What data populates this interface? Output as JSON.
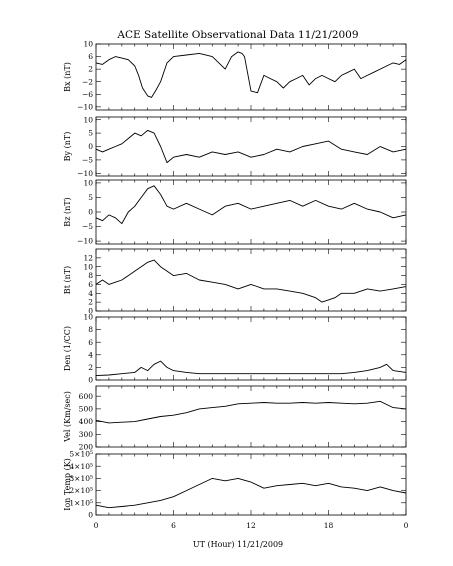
{
  "chart_data": {
    "type": "line",
    "title": "ACE Satellite Observational Data   11/21/2009",
    "xlabel": "UT (Hour)   11/21/2009",
    "x_ticks": [
      "0",
      "6",
      "12",
      "18",
      "0"
    ],
    "xlim": [
      0,
      24
    ],
    "panels": [
      {
        "ylabel": "Bx (nT)",
        "ylim": [
          -11,
          10
        ],
        "ytick_values": [
          10,
          6,
          2,
          -2,
          -6,
          -10
        ],
        "ytick_labels": [
          "10",
          "6",
          "2",
          "−2",
          "−6",
          "−10"
        ],
        "series": [
          {
            "x": [
              0,
              0.5,
              1,
              1.5,
              2,
              2.5,
              3,
              3.3,
              3.6,
              4,
              4.3,
              4.6,
              5,
              5.5,
              6,
              7,
              8,
              9,
              10,
              10.5,
              11,
              11.3,
              11.5,
              12,
              12.5,
              13,
              13.5,
              14,
              14.5,
              15,
              15.5,
              16,
              16.5,
              17,
              17.5,
              18,
              18.5,
              19,
              19.5,
              20,
              20.5,
              21,
              21.5,
              22,
              22.5,
              23,
              23.5,
              24
            ],
            "y": [
              4,
              3.5,
              5,
              6,
              5.5,
              5,
              3,
              0,
              -4,
              -6.5,
              -7,
              -5,
              -2,
              4,
              6,
              6.5,
              7,
              6,
              2,
              6,
              7.5,
              7,
              6,
              -5,
              -5.5,
              0,
              -1,
              -2,
              -4,
              -2,
              -1,
              0,
              -3,
              -1,
              0,
              -1,
              -2,
              0,
              1,
              2,
              -1,
              0,
              1,
              2,
              3,
              4,
              3.5,
              5
            ]
          }
        ]
      },
      {
        "ylabel": "By (nT)",
        "ylim": [
          -11,
          11
        ],
        "ytick_values": [
          10,
          5,
          0,
          -5,
          -10
        ],
        "ytick_labels": [
          "10",
          "5",
          "0",
          "−5",
          "−10"
        ],
        "series": [
          {
            "x": [
              0,
              0.5,
              1,
              1.5,
              2,
              2.5,
              3,
              3.5,
              4,
              4.5,
              5,
              5.5,
              6,
              7,
              8,
              9,
              10,
              11,
              12,
              13,
              14,
              15,
              16,
              17,
              18,
              19,
              20,
              21,
              22,
              23,
              24
            ],
            "y": [
              -1,
              -2,
              -1,
              0,
              1,
              3,
              5,
              4,
              6,
              5,
              0,
              -6,
              -4,
              -3,
              -4,
              -2,
              -3,
              -2,
              -4,
              -3,
              -1,
              -2,
              0,
              1,
              2,
              -1,
              -2,
              -3,
              0,
              -2,
              -1
            ]
          }
        ]
      },
      {
        "ylabel": "Bz (nT)",
        "ylim": [
          -11,
          11
        ],
        "ytick_values": [
          10,
          5,
          0,
          -5,
          -10
        ],
        "ytick_labels": [
          "10",
          "5",
          "0",
          "−5",
          "−10"
        ],
        "series": [
          {
            "x": [
              0,
              0.5,
              1,
              1.5,
              2,
              2.5,
              3,
              3.5,
              4,
              4.5,
              5,
              5.5,
              6,
              7,
              8,
              9,
              10,
              11,
              12,
              13,
              14,
              15,
              16,
              17,
              18,
              19,
              20,
              21,
              22,
              23,
              24
            ],
            "y": [
              -2,
              -3,
              -1,
              -2,
              -4,
              0,
              2,
              5,
              8,
              9,
              6,
              2,
              1,
              3,
              1,
              -1,
              2,
              3,
              1,
              2,
              3,
              4,
              2,
              4,
              2,
              1,
              3,
              1,
              0,
              -2,
              -1
            ]
          }
        ]
      },
      {
        "ylabel": "Bt (nT)",
        "ylim": [
          0,
          14
        ],
        "ytick_values": [
          12,
          10,
          8,
          6,
          4,
          2,
          0
        ],
        "ytick_labels": [
          "12",
          "10",
          "8",
          "6",
          "4",
          "2",
          "0"
        ],
        "series": [
          {
            "x": [
              0,
              0.5,
              1,
              1.5,
              2,
              2.5,
              3,
              3.5,
              4,
              4.5,
              5,
              5.5,
              6,
              7,
              8,
              9,
              10,
              11,
              12,
              13,
              14,
              15,
              16,
              17,
              17.5,
              18,
              18.5,
              19,
              20,
              21,
              22,
              23,
              24
            ],
            "y": [
              6,
              7,
              6,
              6.5,
              7,
              8,
              9,
              10,
              11,
              11.5,
              10,
              9,
              8,
              8.5,
              7,
              6.5,
              6,
              5,
              6,
              5,
              5,
              4.5,
              4,
              3,
              2,
              2.5,
              3,
              4,
              4,
              5,
              4.5,
              5,
              5.5
            ]
          }
        ]
      },
      {
        "ylabel": "Den (1/CC)",
        "ylim": [
          0,
          10
        ],
        "ytick_values": [
          10,
          8,
          6,
          4,
          2,
          0
        ],
        "ytick_labels": [
          "10",
          "8",
          "6",
          "4",
          "2",
          "0"
        ],
        "series": [
          {
            "x": [
              0,
              1,
              2,
              3,
              3.5,
              4,
              4.5,
              5,
              5.5,
              6,
              7,
              8,
              9,
              10,
              11,
              12,
              13,
              14,
              15,
              16,
              17,
              18,
              19,
              20,
              21,
              22,
              22.5,
              23,
              24
            ],
            "y": [
              0.7,
              0.8,
              1,
              1.2,
              2,
              1.5,
              2.5,
              3,
              2,
              1.5,
              1.2,
              1,
              1,
              1,
              1,
              1,
              1,
              1,
              1,
              1,
              1,
              1,
              1,
              1.2,
              1.5,
              2,
              2.5,
              1.5,
              1.2
            ]
          }
        ]
      },
      {
        "ylabel": "Vel (Km/sec)",
        "ylim": [
          200,
          680
        ],
        "ytick_values": [
          600,
          500,
          400,
          300,
          200
        ],
        "ytick_labels": [
          "600",
          "500",
          "400",
          "300",
          "200"
        ],
        "series": [
          {
            "x": [
              0,
              1,
              2,
              3,
              4,
              5,
              6,
              7,
              8,
              9,
              10,
              11,
              12,
              13,
              14,
              15,
              16,
              17,
              18,
              19,
              20,
              21,
              22,
              23,
              24
            ],
            "y": [
              410,
              390,
              395,
              400,
              420,
              440,
              450,
              470,
              500,
              510,
              520,
              540,
              545,
              550,
              545,
              545,
              550,
              545,
              550,
              545,
              540,
              545,
              560,
              510,
              500
            ]
          }
        ]
      },
      {
        "ylabel": "Ion Temp (K)",
        "ylim": [
          0,
          500000
        ],
        "ytick_values": [
          500000,
          400000,
          300000,
          200000,
          100000,
          0
        ],
        "ytick_labels": [
          "5×10⁵",
          "4×10⁵",
          "3×10⁵",
          "2×10⁵",
          "1×10⁵",
          "0"
        ],
        "series": [
          {
            "x": [
              0,
              1,
              2,
              3,
              4,
              5,
              6,
              7,
              8,
              9,
              10,
              11,
              12,
              13,
              14,
              15,
              16,
              17,
              18,
              19,
              20,
              21,
              22,
              23,
              24
            ],
            "y": [
              80000,
              60000,
              70000,
              80000,
              100000,
              120000,
              150000,
              200000,
              250000,
              300000,
              280000,
              300000,
              270000,
              220000,
              240000,
              250000,
              260000,
              240000,
              260000,
              230000,
              220000,
              200000,
              230000,
              200000,
              180000
            ]
          }
        ]
      }
    ]
  }
}
